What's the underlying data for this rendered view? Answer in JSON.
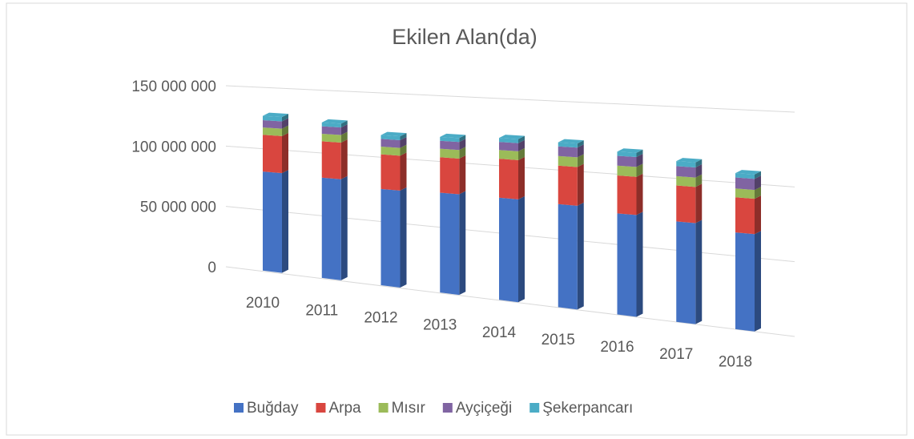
{
  "chart_data": {
    "type": "bar3d",
    "stacked": true,
    "title": "Ekilen Alan(da)",
    "categories": [
      "2010",
      "2011",
      "2012",
      "2013",
      "2014",
      "2015",
      "2016",
      "2017",
      "2018"
    ],
    "series": [
      {
        "name": "Buğday",
        "color": "#4472c4",
        "values": [
          81000000,
          80000000,
          75000000,
          76000000,
          76000000,
          75000000,
          72000000,
          70000000,
          66000000
        ]
      },
      {
        "name": "Arpa",
        "color": "#d9463f",
        "values": [
          30000000,
          29000000,
          27000000,
          27000000,
          29000000,
          28000000,
          27000000,
          25000000,
          24000000
        ]
      },
      {
        "name": "Mısır",
        "color": "#9bbb59",
        "values": [
          6000000,
          6000000,
          6000000,
          6500000,
          6500000,
          7000000,
          7000000,
          6500000,
          6000000
        ]
      },
      {
        "name": "Ayçiçeği",
        "color": "#8064a2",
        "values": [
          6000000,
          6000000,
          6000000,
          6000000,
          6000000,
          7000000,
          7000000,
          7000000,
          7500000
        ]
      },
      {
        "name": "Şekerpancarı",
        "color": "#4bacc6",
        "values": [
          3500000,
          3000000,
          3000000,
          3000000,
          3000000,
          3000000,
          3000000,
          3500000,
          3000000
        ]
      }
    ],
    "ylim": [
      0,
      150000000
    ],
    "yticks": [
      0,
      {
        "value": 50000000,
        "label": "50 000 000"
      },
      {
        "value": 100000000,
        "label": "100 000 000"
      },
      {
        "value": 150000000,
        "label": "150 000 000"
      }
    ],
    "grid": true,
    "legend": "bottom"
  }
}
